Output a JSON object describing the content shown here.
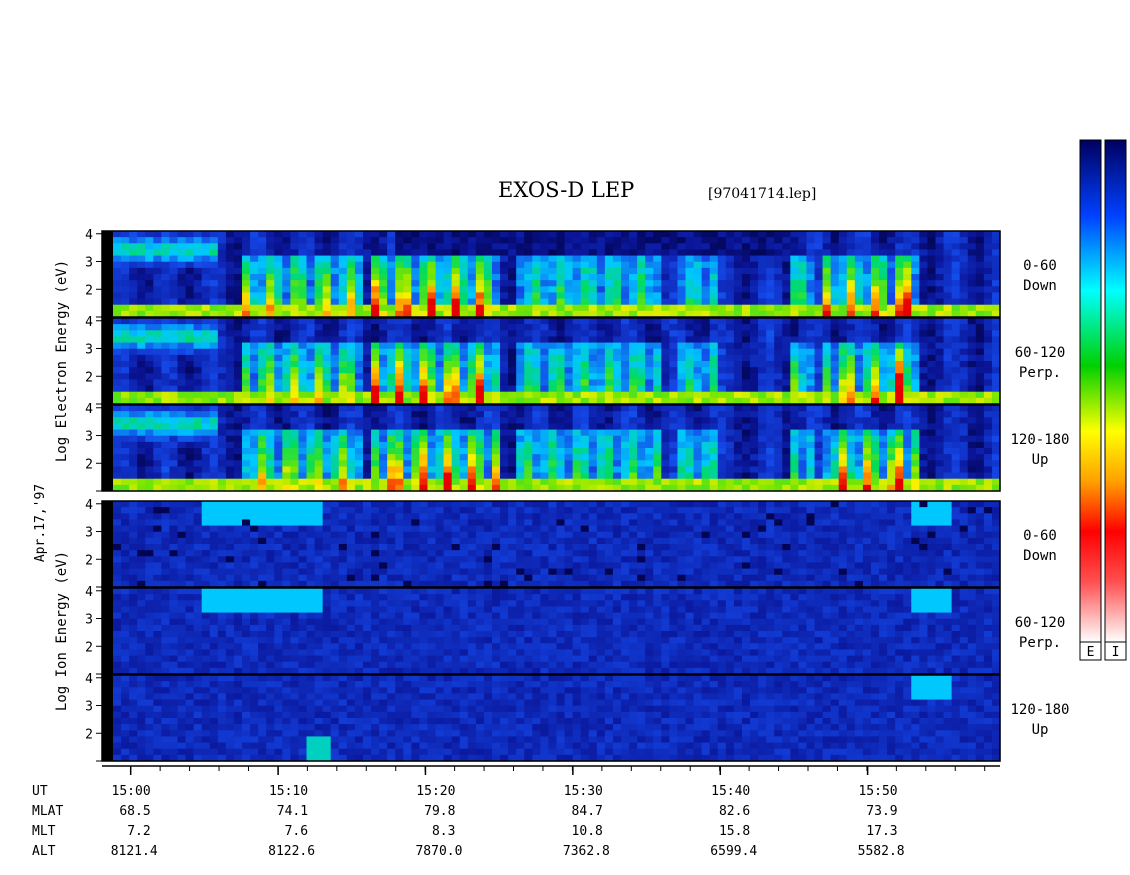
{
  "title": "EXOS-D LEP",
  "file_label": "[97041714.lep]",
  "date_label": "Apr.17,'97",
  "colorbars": [
    {
      "label": "E"
    },
    {
      "label": "I"
    }
  ],
  "chart_data": {
    "type": "heatmap",
    "groups": [
      {
        "species": "Electron",
        "ylabel_words": [
          "Log",
          "Electron",
          "Energy",
          "(eV)"
        ],
        "panels": [
          {
            "pitch_label": [
              "0-60",
              "Down"
            ]
          },
          {
            "pitch_label": [
              "60-120",
              "Perp."
            ]
          },
          {
            "pitch_label": [
              "120-180",
              "Up"
            ]
          }
        ]
      },
      {
        "species": "Ion",
        "ylabel_words": [
          "Log",
          "Ion",
          "Energy",
          "(eV)"
        ],
        "panels": [
          {
            "pitch_label": [
              "0-60",
              "Down"
            ]
          },
          {
            "pitch_label": [
              "60-120",
              "Perp."
            ]
          },
          {
            "pitch_label": [
              "120-180",
              "Up"
            ]
          }
        ]
      }
    ],
    "y_ticks": [
      "2",
      "3",
      "4"
    ],
    "ylim": [
      1,
      4.1
    ],
    "x_range_minutes": [
      14.98,
      15.983
    ],
    "x_major_ticks_minutes": [
      15.0,
      15.1667,
      15.3333,
      15.5,
      15.6667,
      15.8333
    ],
    "x_minor_step_minutes": 0.0333,
    "orbit_table": {
      "row_labels": [
        "UT",
        "MLAT",
        "MLT",
        "ALT"
      ],
      "columns": [
        {
          "UT": "15:00",
          "MLAT": "68.5",
          "MLT": "7.2",
          "ALT": "8121.4"
        },
        {
          "UT": "15:10",
          "MLAT": "74.1",
          "MLT": "7.6",
          "ALT": "8122.6"
        },
        {
          "UT": "15:20",
          "MLAT": "79.8",
          "MLT": "8.3",
          "ALT": "7870.0"
        },
        {
          "UT": "15:30",
          "MLAT": "84.7",
          "MLT": "10.8",
          "ALT": "7362.8"
        },
        {
          "UT": "15:40",
          "MLAT": "82.6",
          "MLT": "15.8",
          "ALT": "6599.4"
        },
        {
          "UT": "15:50",
          "MLAT": "73.9",
          "MLT": "17.3",
          "ALT": "5582.8"
        }
      ]
    }
  }
}
